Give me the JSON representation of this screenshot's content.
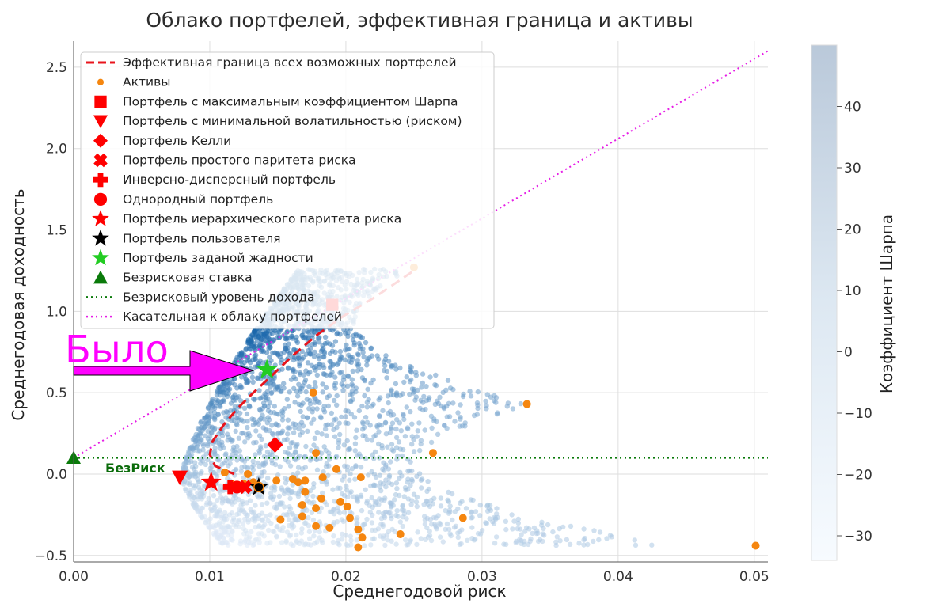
{
  "chart_data": {
    "type": "scatter",
    "title": "Облако портфелей, эффективная граница и активы",
    "xlabel": "Среднегодовой риск",
    "ylabel": "Среднегодовая доходность",
    "xlim": [
      0.0,
      0.051
    ],
    "ylim": [
      -0.54,
      2.66
    ],
    "xticks": [
      "0.00",
      "0.01",
      "0.02",
      "0.03",
      "0.04",
      "0.05"
    ],
    "yticks": [
      "−0.5",
      "0.0",
      "0.5",
      "1.0",
      "1.5",
      "2.0",
      "2.5"
    ],
    "grid": true,
    "legend_position": "top-left",
    "colorbar": {
      "label": "Коэффициент Шарпа",
      "ticks": [
        "−30",
        "−20",
        "−10",
        "0",
        "10",
        "20",
        "30",
        "40"
      ],
      "range": [
        -34,
        50
      ],
      "colormap": "Blues"
    },
    "legend": [
      {
        "label": "Эффективная граница всех возможных портфелей",
        "marker": "dashed-line",
        "color": "#e8141c"
      },
      {
        "label": "Активы",
        "marker": "circle-small",
        "color": "#f5860f"
      },
      {
        "label": "Портфель с максимальным коэффициентом Шарпа",
        "marker": "square",
        "color": "#ff0000"
      },
      {
        "label": "Портфель с минимальной волатильностью (риском)",
        "marker": "triangle-down",
        "color": "#ff0000"
      },
      {
        "label": "Портфель Келли",
        "marker": "diamond",
        "color": "#ff0000"
      },
      {
        "label": "Портфель простого паритета риска",
        "marker": "x-filled",
        "color": "#ff0000"
      },
      {
        "label": "Инверсно-дисперсный портфель",
        "marker": "plus-filled",
        "color": "#ff0000"
      },
      {
        "label": "Однородный портфель",
        "marker": "circle",
        "color": "#ff0000"
      },
      {
        "label": "Портфель иерархического паритета риска",
        "marker": "star",
        "color": "#ff0000"
      },
      {
        "label": "Портфель пользователя",
        "marker": "star",
        "color": "#000000"
      },
      {
        "label": "Портфель заданой жадности",
        "marker": "star",
        "color": "#22cc22"
      },
      {
        "label": "Безрисковая ставка",
        "marker": "triangle-up",
        "color": "#0a7a0a"
      },
      {
        "label": "Безрисковый уровень дохода",
        "marker": "dotted-line",
        "color": "#0a7a0a"
      },
      {
        "label": "Касательная к облаку портфелей",
        "marker": "dotted-line",
        "color": "#e61ce6"
      }
    ],
    "assets": [
      [
        0.0176,
        0.5
      ],
      [
        0.0333,
        0.43
      ],
      [
        0.0264,
        0.13
      ],
      [
        0.0178,
        0.13
      ],
      [
        0.0193,
        0.03
      ],
      [
        0.0111,
        0.01
      ],
      [
        0.0128,
        0.0
      ],
      [
        0.0132,
        -0.05
      ],
      [
        0.0149,
        -0.04
      ],
      [
        0.0161,
        -0.03
      ],
      [
        0.017,
        -0.04
      ],
      [
        0.0183,
        -0.02
      ],
      [
        0.0211,
        -0.02
      ],
      [
        0.0116,
        -0.06
      ],
      [
        0.0125,
        -0.06
      ],
      [
        0.0165,
        -0.05
      ],
      [
        0.017,
        -0.11
      ],
      [
        0.0182,
        -0.15
      ],
      [
        0.0168,
        -0.19
      ],
      [
        0.0178,
        -0.21
      ],
      [
        0.0196,
        -0.17
      ],
      [
        0.0201,
        -0.2
      ],
      [
        0.0152,
        -0.28
      ],
      [
        0.0168,
        -0.26
      ],
      [
        0.0178,
        -0.32
      ],
      [
        0.0188,
        -0.33
      ],
      [
        0.0203,
        -0.27
      ],
      [
        0.0209,
        -0.34
      ],
      [
        0.0212,
        -0.39
      ],
      [
        0.0209,
        -0.45
      ],
      [
        0.024,
        -0.37
      ],
      [
        0.0286,
        -0.27
      ],
      [
        0.0501,
        -0.44
      ],
      [
        0.025,
        1.27
      ]
    ],
    "efficient_frontier": [
      [
        0.0118,
        0.0
      ],
      [
        0.0104,
        0.05
      ],
      [
        0.01,
        0.12
      ],
      [
        0.0102,
        0.2
      ],
      [
        0.011,
        0.3
      ],
      [
        0.012,
        0.4
      ],
      [
        0.0132,
        0.5
      ],
      [
        0.0145,
        0.6
      ],
      [
        0.016,
        0.72
      ],
      [
        0.0178,
        0.85
      ],
      [
        0.0198,
        0.97
      ],
      [
        0.022,
        1.08
      ],
      [
        0.025,
        1.25
      ]
    ],
    "special_portfolios": {
      "max_sharpe": [
        0.019,
        1.04
      ],
      "min_volatility": [
        0.0078,
        -0.02
      ],
      "kelly": [
        0.0148,
        0.18
      ],
      "risk_parity": [
        0.0126,
        -0.08
      ],
      "inverse_variance": [
        0.0115,
        -0.08
      ],
      "uniform": [
        0.012,
        -0.08
      ],
      "hierarchical_risk_parity": [
        0.0101,
        -0.05
      ],
      "user": [
        0.0136,
        -0.08
      ],
      "greedy": [
        0.0142,
        0.64
      ],
      "risk_free_rate": [
        0.0,
        0.1
      ]
    },
    "risk_free_level": 0.1,
    "tangent_line": [
      [
        0.0,
        0.1
      ],
      [
        0.051,
        2.6
      ]
    ],
    "annotations": {
      "arrow_label": "Было",
      "risk_free_label": "БезРиск"
    }
  }
}
